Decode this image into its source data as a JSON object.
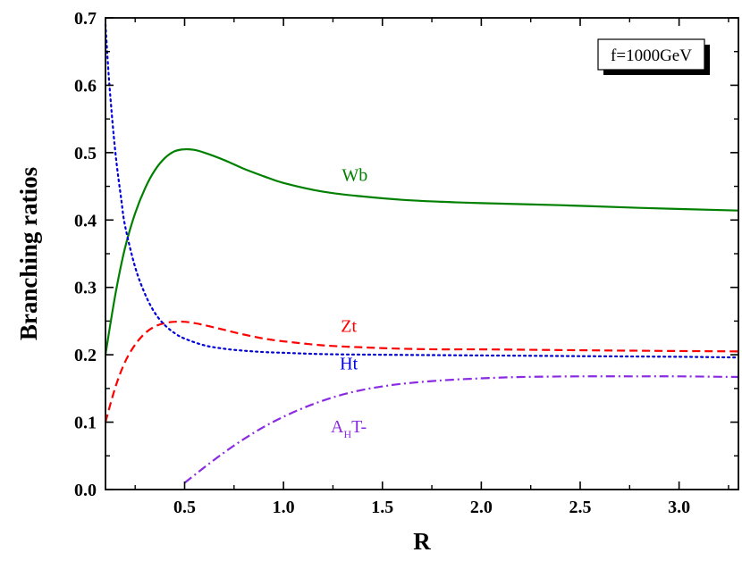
{
  "chart_data": {
    "type": "line",
    "xlabel": "R",
    "ylabel": "Branching ratios",
    "xlim": [
      0.1,
      3.3
    ],
    "ylim": [
      0.0,
      0.7
    ],
    "xticks": [
      "0.5",
      "1.0",
      "1.5",
      "2.0",
      "2.5",
      "3.0"
    ],
    "yticks": [
      "0.0",
      "0.1",
      "0.2",
      "0.3",
      "0.4",
      "0.5",
      "0.6",
      "0.7"
    ],
    "annotation": "f=1000GeV",
    "grid": false,
    "series": [
      {
        "name": "Wb",
        "color": "#008000",
        "dash": "solid",
        "label_at": [
          1.36,
          0.458
        ],
        "x": [
          0.1,
          0.15,
          0.2,
          0.25,
          0.3,
          0.35,
          0.4,
          0.45,
          0.5,
          0.55,
          0.6,
          0.7,
          0.8,
          0.9,
          1.0,
          1.2,
          1.4,
          1.6,
          1.8,
          2.0,
          2.4,
          2.8,
          3.3
        ],
        "y": [
          0.2,
          0.29,
          0.36,
          0.41,
          0.447,
          0.474,
          0.492,
          0.502,
          0.505,
          0.504,
          0.5,
          0.489,
          0.476,
          0.465,
          0.455,
          0.442,
          0.435,
          0.43,
          0.427,
          0.425,
          0.422,
          0.418,
          0.414
        ]
      },
      {
        "name": "Zt",
        "color": "#ff0000",
        "dash": "dashed",
        "label_at": [
          1.33,
          0.234
        ],
        "x": [
          0.1,
          0.15,
          0.2,
          0.25,
          0.3,
          0.35,
          0.4,
          0.45,
          0.5,
          0.55,
          0.6,
          0.7,
          0.8,
          0.9,
          1.0,
          1.2,
          1.4,
          1.6,
          1.8,
          2.0,
          2.4,
          2.8,
          3.3
        ],
        "y": [
          0.1,
          0.152,
          0.19,
          0.215,
          0.232,
          0.242,
          0.247,
          0.249,
          0.249,
          0.247,
          0.244,
          0.237,
          0.23,
          0.224,
          0.22,
          0.214,
          0.211,
          0.209,
          0.208,
          0.208,
          0.207,
          0.206,
          0.205
        ]
      },
      {
        "name": "Ht",
        "color": "#0000dd",
        "dash": "dotted",
        "label_at": [
          1.33,
          0.178
        ],
        "x": [
          0.1,
          0.12,
          0.15,
          0.18,
          0.2,
          0.25,
          0.3,
          0.35,
          0.4,
          0.45,
          0.5,
          0.6,
          0.7,
          0.8,
          0.9,
          1.0,
          1.2,
          1.5,
          2.0,
          2.5,
          3.0,
          3.3
        ],
        "y": [
          0.69,
          0.6,
          0.5,
          0.43,
          0.39,
          0.33,
          0.29,
          0.262,
          0.244,
          0.232,
          0.224,
          0.214,
          0.209,
          0.206,
          0.204,
          0.203,
          0.201,
          0.2,
          0.199,
          0.198,
          0.197,
          0.196
        ]
      },
      {
        "name": "A_HT-",
        "label_main": "A",
        "label_sub": "H",
        "label_tail": "T-",
        "color": "#8a2be2",
        "dash": "dashdot",
        "label_at": [
          1.33,
          0.085
        ],
        "x": [
          0.5,
          0.6,
          0.7,
          0.8,
          0.9,
          1.0,
          1.1,
          1.2,
          1.3,
          1.4,
          1.5,
          1.6,
          1.8,
          2.0,
          2.2,
          2.5,
          2.8,
          3.0,
          3.3
        ],
        "y": [
          0.01,
          0.033,
          0.055,
          0.075,
          0.093,
          0.108,
          0.121,
          0.132,
          0.141,
          0.148,
          0.153,
          0.157,
          0.162,
          0.165,
          0.167,
          0.168,
          0.168,
          0.168,
          0.167
        ]
      }
    ]
  }
}
